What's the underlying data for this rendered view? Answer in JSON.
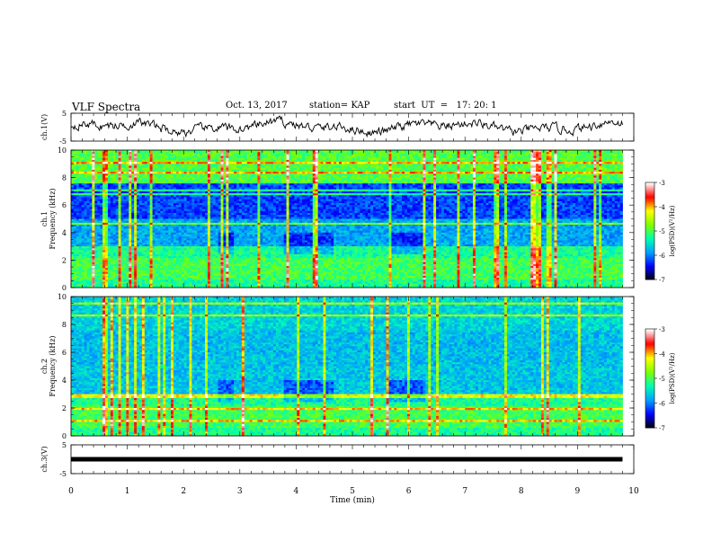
{
  "header": {
    "title": "VLF Spectra",
    "date": "Oct. 13, 2017",
    "station": "station= KAP",
    "start_ut": "start  UT  =   17: 20: 1"
  },
  "chart_data": [
    {
      "type": "line",
      "ylabel": "ch.1(V)",
      "ylim": [
        -5,
        5
      ],
      "yticks": [
        "5",
        "-5"
      ],
      "xlim": [
        0,
        10
      ]
    },
    {
      "type": "heatmap",
      "ylabel": "ch.1\nFrequency (kHz)",
      "ylabel_lines": [
        "ch.1",
        "Frequency (kHz)"
      ],
      "ylim": [
        0,
        10
      ],
      "yticks": [
        "0",
        "2",
        "4",
        "6",
        "8",
        "10"
      ],
      "xlim": [
        0,
        10
      ],
      "colorbar": {
        "label": "log(PSD)(V²/Hz)",
        "range": [
          -7,
          -3
        ],
        "ticks": [
          "-3",
          "-4",
          "-5",
          "-6",
          "-7"
        ],
        "colors": [
          "#000000",
          "#0000ff",
          "#00a0ff",
          "#00ffb0",
          "#80ff00",
          "#ffff00",
          "#ff0000",
          "#ffffff"
        ]
      }
    },
    {
      "type": "heatmap",
      "ylabel": "ch.2\nFrequency (kHz)",
      "ylabel_lines": [
        "ch.2",
        "Frequency (kHz)"
      ],
      "ylim": [
        0,
        10
      ],
      "yticks": [
        "0",
        "2",
        "4",
        "6",
        "8",
        "10"
      ],
      "xlim": [
        0,
        10
      ],
      "colorbar": {
        "label": "log(PSD)(V²/Hz)",
        "range": [
          -7,
          -3
        ],
        "ticks": [
          "-3",
          "-4",
          "-5",
          "-6",
          "-7"
        ],
        "colors": [
          "#000000",
          "#0000ff",
          "#00a0ff",
          "#00ffb0",
          "#80ff00",
          "#ffff00",
          "#ff0000",
          "#ffffff"
        ]
      }
    },
    {
      "type": "line",
      "ylabel": "ch.3(V)",
      "ylim": [
        -5,
        5
      ],
      "yticks": [
        "5",
        "-5"
      ],
      "xlim": [
        0,
        10
      ],
      "series": [
        {
          "x": [
            0,
            9.8
          ],
          "y": [
            0,
            0
          ]
        }
      ]
    }
  ],
  "xaxis": {
    "label": "Time  (min)",
    "ticks": [
      "0",
      "1",
      "2",
      "3",
      "4",
      "5",
      "6",
      "7",
      "8",
      "9",
      "10"
    ],
    "data_end": 9.8
  }
}
